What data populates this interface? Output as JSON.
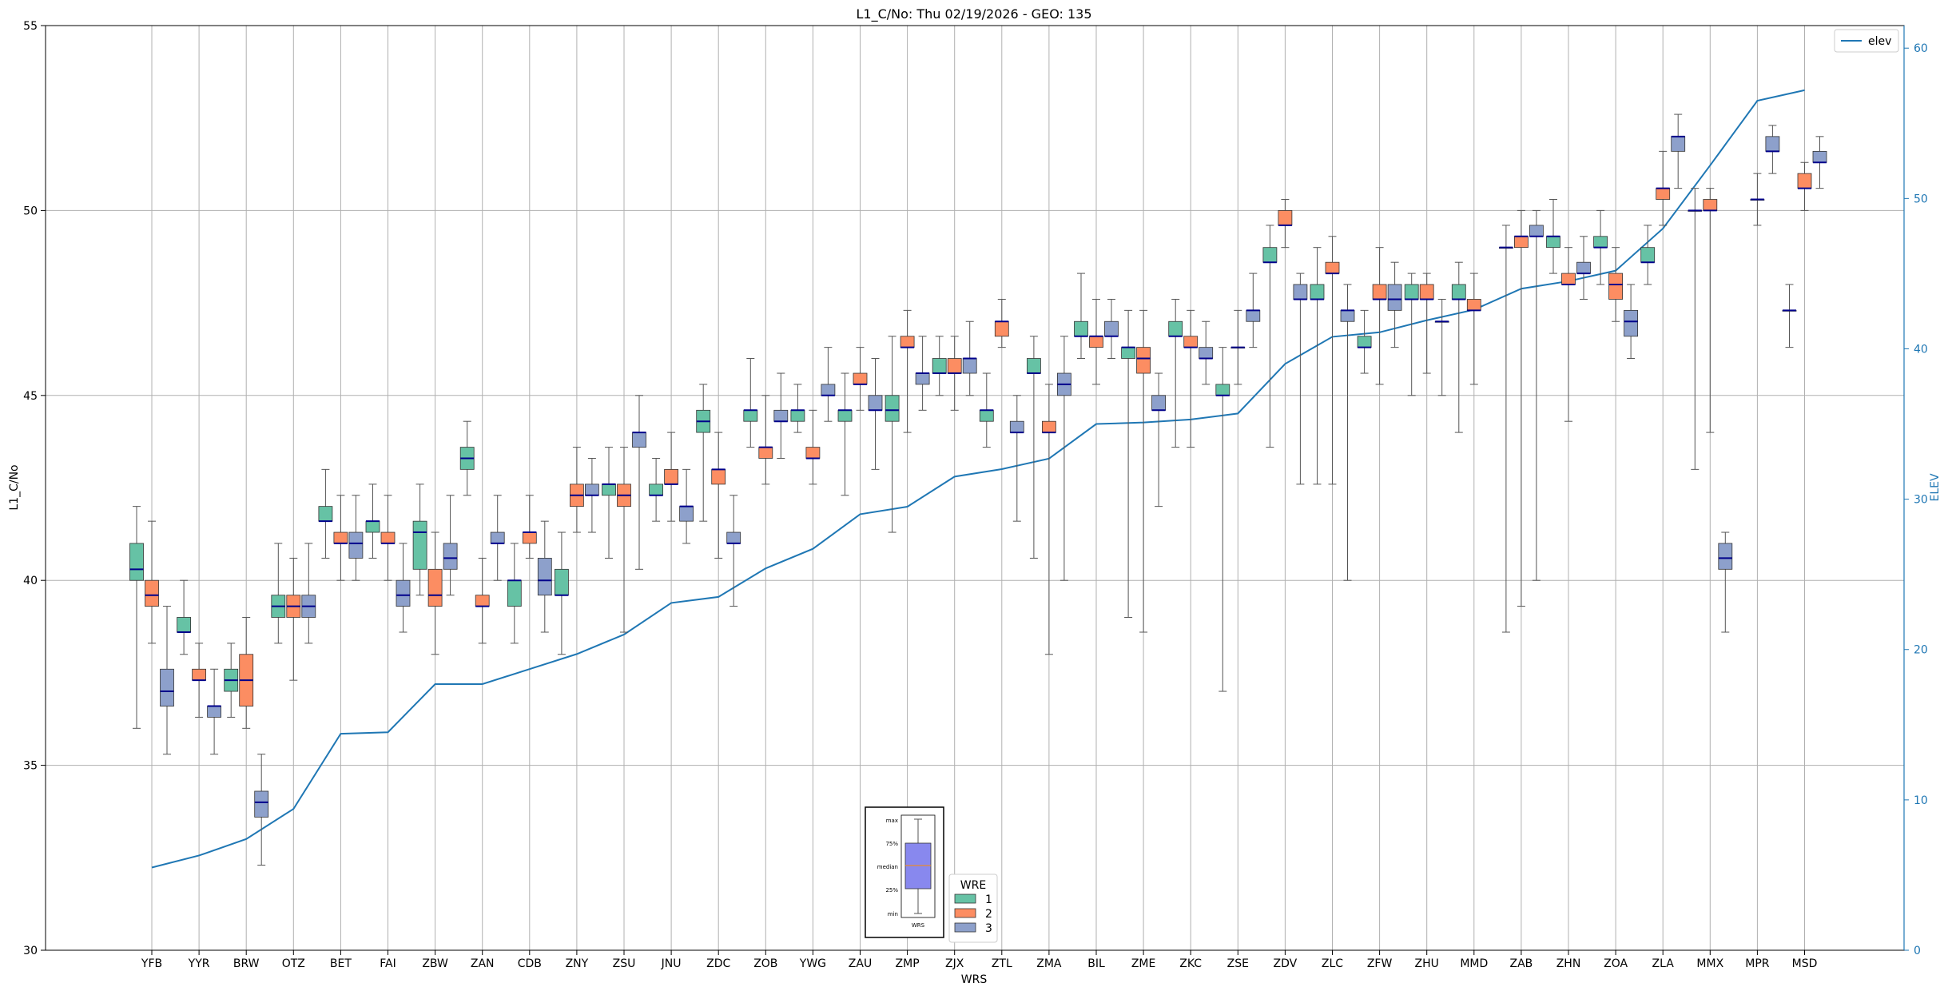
{
  "chart_data": {
    "type": "boxplot",
    "title": "L1_C/No: Thu 02/19/2026 - GEO: 135",
    "xlabel": "WRS",
    "ylabel": "L1_C/No",
    "y2label": "ELEV",
    "ylim": [
      30,
      55
    ],
    "y2lim": [
      0,
      61.5
    ],
    "yticks": [
      30,
      35,
      40,
      45,
      50,
      55
    ],
    "y2ticks": [
      0,
      10,
      20,
      30,
      40,
      50,
      60
    ],
    "categories": [
      "YFB",
      "YYR",
      "BRW",
      "OTZ",
      "BET",
      "FAI",
      "ZBW",
      "ZAN",
      "CDB",
      "ZNY",
      "ZSU",
      "JNU",
      "ZDC",
      "ZOB",
      "YWG",
      "ZAU",
      "ZMP",
      "ZJX",
      "ZTL",
      "ZMA",
      "BIL",
      "ZME",
      "ZKC",
      "ZSE",
      "ZDV",
      "ZLC",
      "ZFW",
      "ZHU",
      "MMD",
      "ZAB",
      "ZHN",
      "ZOA",
      "ZLA",
      "MMX",
      "MPR",
      "MSD"
    ],
    "groups": [
      {
        "name": "1",
        "color": "#66c2a5"
      },
      {
        "name": "2",
        "color": "#fc8d62"
      },
      {
        "name": "3",
        "color": "#8da0cb"
      }
    ],
    "legend_title": "WRE",
    "elev_series": {
      "name": "elev",
      "color": "#1f77b4",
      "values": [
        5.5,
        6.3,
        7.4,
        9.4,
        14.4,
        14.5,
        17.7,
        17.7,
        18.7,
        19.7,
        21.0,
        23.1,
        23.5,
        25.4,
        26.7,
        29.0,
        29.5,
        31.5,
        32.0,
        32.7,
        35.0,
        35.1,
        35.3,
        35.7,
        39.0,
        40.8,
        41.1,
        41.9,
        42.6,
        44.0,
        44.5,
        45.2,
        48.0,
        52.2,
        56.5,
        57.2
      ]
    },
    "boxes": [
      {
        "station": "YFB",
        "wre": 1,
        "min": 36.0,
        "q1": 40.0,
        "median": 40.3,
        "q3": 41.0,
        "max": 42.0
      },
      {
        "station": "YFB",
        "wre": 2,
        "min": 38.3,
        "q1": 39.3,
        "median": 39.6,
        "q3": 40.0,
        "max": 41.6
      },
      {
        "station": "YFB",
        "wre": 3,
        "min": 35.3,
        "q1": 36.6,
        "median": 37.0,
        "q3": 37.6,
        "max": 39.3
      },
      {
        "station": "YYR",
        "wre": 1,
        "min": 38.0,
        "q1": 38.6,
        "median": 38.6,
        "q3": 39.0,
        "max": 40.0
      },
      {
        "station": "YYR",
        "wre": 2,
        "min": 36.3,
        "q1": 37.3,
        "median": 37.3,
        "q3": 37.6,
        "max": 38.3
      },
      {
        "station": "YYR",
        "wre": 3,
        "min": 35.3,
        "q1": 36.3,
        "median": 36.6,
        "q3": 36.6,
        "max": 37.6
      },
      {
        "station": "BRW",
        "wre": 1,
        "min": 36.3,
        "q1": 37.0,
        "median": 37.3,
        "q3": 37.6,
        "max": 38.3
      },
      {
        "station": "BRW",
        "wre": 2,
        "min": 36.0,
        "q1": 36.6,
        "median": 37.3,
        "q3": 38.0,
        "max": 39.0
      },
      {
        "station": "BRW",
        "wre": 3,
        "min": 32.3,
        "q1": 33.6,
        "median": 34.0,
        "q3": 34.3,
        "max": 35.3
      },
      {
        "station": "OTZ",
        "wre": 1,
        "min": 38.3,
        "q1": 39.0,
        "median": 39.3,
        "q3": 39.6,
        "max": 41.0
      },
      {
        "station": "OTZ",
        "wre": 2,
        "min": 37.3,
        "q1": 39.0,
        "median": 39.3,
        "q3": 39.6,
        "max": 40.6
      },
      {
        "station": "OTZ",
        "wre": 3,
        "min": 38.3,
        "q1": 39.0,
        "median": 39.3,
        "q3": 39.6,
        "max": 41.0
      },
      {
        "station": "BET",
        "wre": 1,
        "min": 40.6,
        "q1": 41.6,
        "median": 41.6,
        "q3": 42.0,
        "max": 43.0
      },
      {
        "station": "BET",
        "wre": 2,
        "min": 40.0,
        "q1": 41.0,
        "median": 41.0,
        "q3": 41.3,
        "max": 42.3
      },
      {
        "station": "BET",
        "wre": 3,
        "min": 40.0,
        "q1": 40.6,
        "median": 41.0,
        "q3": 41.3,
        "max": 42.3
      },
      {
        "station": "FAI",
        "wre": 1,
        "min": 40.6,
        "q1": 41.3,
        "median": 41.6,
        "q3": 41.6,
        "max": 42.6
      },
      {
        "station": "FAI",
        "wre": 2,
        "min": 40.0,
        "q1": 41.0,
        "median": 41.0,
        "q3": 41.3,
        "max": 42.3
      },
      {
        "station": "FAI",
        "wre": 3,
        "min": 38.6,
        "q1": 39.3,
        "median": 39.6,
        "q3": 40.0,
        "max": 41.0
      },
      {
        "station": "ZBW",
        "wre": 1,
        "min": 39.6,
        "q1": 40.3,
        "median": 41.3,
        "q3": 41.6,
        "max": 42.6
      },
      {
        "station": "ZBW",
        "wre": 2,
        "min": 38.0,
        "q1": 39.3,
        "median": 39.6,
        "q3": 40.3,
        "max": 41.3
      },
      {
        "station": "ZBW",
        "wre": 3,
        "min": 39.6,
        "q1": 40.3,
        "median": 40.6,
        "q3": 41.0,
        "max": 42.3
      },
      {
        "station": "ZAN",
        "wre": 1,
        "min": 42.3,
        "q1": 43.0,
        "median": 43.3,
        "q3": 43.6,
        "max": 44.3
      },
      {
        "station": "ZAN",
        "wre": 2,
        "min": 38.3,
        "q1": 39.3,
        "median": 39.3,
        "q3": 39.6,
        "max": 40.6
      },
      {
        "station": "ZAN",
        "wre": 3,
        "min": 40.0,
        "q1": 41.0,
        "median": 41.0,
        "q3": 41.3,
        "max": 42.3
      },
      {
        "station": "CDB",
        "wre": 1,
        "min": 38.3,
        "q1": 39.3,
        "median": 40.0,
        "q3": 40.0,
        "max": 41.0
      },
      {
        "station": "CDB",
        "wre": 2,
        "min": 40.6,
        "q1": 41.0,
        "median": 41.3,
        "q3": 41.3,
        "max": 42.3
      },
      {
        "station": "CDB",
        "wre": 3,
        "min": 38.6,
        "q1": 39.6,
        "median": 40.0,
        "q3": 40.6,
        "max": 41.6
      },
      {
        "station": "ZNY",
        "wre": 1,
        "min": 38.0,
        "q1": 39.6,
        "median": 39.6,
        "q3": 40.3,
        "max": 41.3
      },
      {
        "station": "ZNY",
        "wre": 2,
        "min": 41.3,
        "q1": 42.0,
        "median": 42.3,
        "q3": 42.6,
        "max": 43.6
      },
      {
        "station": "ZNY",
        "wre": 3,
        "min": 41.3,
        "q1": 42.3,
        "median": 42.3,
        "q3": 42.6,
        "max": 43.3
      },
      {
        "station": "ZSU",
        "wre": 1,
        "min": 40.6,
        "q1": 42.3,
        "median": 42.6,
        "q3": 42.6,
        "max": 43.6
      },
      {
        "station": "ZSU",
        "wre": 2,
        "min": 38.6,
        "q1": 42.0,
        "median": 42.3,
        "q3": 42.6,
        "max": 43.6
      },
      {
        "station": "ZSU",
        "wre": 3,
        "min": 40.3,
        "q1": 43.6,
        "median": 44.0,
        "q3": 44.0,
        "max": 45.0
      },
      {
        "station": "JNU",
        "wre": 1,
        "min": 41.6,
        "q1": 42.3,
        "median": 42.3,
        "q3": 42.6,
        "max": 43.3
      },
      {
        "station": "JNU",
        "wre": 2,
        "min": 41.6,
        "q1": 42.6,
        "median": 42.6,
        "q3": 43.0,
        "max": 44.0
      },
      {
        "station": "JNU",
        "wre": 3,
        "min": 41.0,
        "q1": 41.6,
        "median": 42.0,
        "q3": 42.0,
        "max": 43.0
      },
      {
        "station": "ZDC",
        "wre": 1,
        "min": 41.6,
        "q1": 44.0,
        "median": 44.3,
        "q3": 44.6,
        "max": 45.3
      },
      {
        "station": "ZDC",
        "wre": 2,
        "min": 40.6,
        "q1": 42.6,
        "median": 43.0,
        "q3": 43.0,
        "max": 44.0
      },
      {
        "station": "ZDC",
        "wre": 3,
        "min": 39.3,
        "q1": 41.0,
        "median": 41.0,
        "q3": 41.3,
        "max": 42.3
      },
      {
        "station": "ZOB",
        "wre": 1,
        "min": 43.6,
        "q1": 44.3,
        "median": 44.6,
        "q3": 44.6,
        "max": 46.0
      },
      {
        "station": "ZOB",
        "wre": 2,
        "min": 42.6,
        "q1": 43.3,
        "median": 43.6,
        "q3": 43.6,
        "max": 45.0
      },
      {
        "station": "ZOB",
        "wre": 3,
        "min": 43.3,
        "q1": 44.3,
        "median": 44.3,
        "q3": 44.6,
        "max": 45.6
      },
      {
        "station": "YWG",
        "wre": 1,
        "min": 44.0,
        "q1": 44.3,
        "median": 44.6,
        "q3": 44.6,
        "max": 45.3
      },
      {
        "station": "YWG",
        "wre": 2,
        "min": 42.6,
        "q1": 43.3,
        "median": 43.3,
        "q3": 43.6,
        "max": 44.6
      },
      {
        "station": "YWG",
        "wre": 3,
        "min": 44.3,
        "q1": 45.0,
        "median": 45.0,
        "q3": 45.3,
        "max": 46.3
      },
      {
        "station": "ZAU",
        "wre": 1,
        "min": 42.3,
        "q1": 44.3,
        "median": 44.6,
        "q3": 44.6,
        "max": 45.6
      },
      {
        "station": "ZAU",
        "wre": 2,
        "min": 44.6,
        "q1": 45.3,
        "median": 45.3,
        "q3": 45.6,
        "max": 46.3
      },
      {
        "station": "ZAU",
        "wre": 3,
        "min": 43.0,
        "q1": 44.6,
        "median": 44.6,
        "q3": 45.0,
        "max": 46.0
      },
      {
        "station": "ZMP",
        "wre": 1,
        "min": 41.3,
        "q1": 44.3,
        "median": 44.6,
        "q3": 45.0,
        "max": 46.6
      },
      {
        "station": "ZMP",
        "wre": 2,
        "min": 44.0,
        "q1": 46.3,
        "median": 46.3,
        "q3": 46.6,
        "max": 47.3
      },
      {
        "station": "ZMP",
        "wre": 3,
        "min": 44.6,
        "q1": 45.3,
        "median": 45.6,
        "q3": 45.6,
        "max": 46.6
      },
      {
        "station": "ZJX",
        "wre": 1,
        "min": 45.0,
        "q1": 45.6,
        "median": 45.6,
        "q3": 46.0,
        "max": 46.6
      },
      {
        "station": "ZJX",
        "wre": 2,
        "min": 44.6,
        "q1": 45.6,
        "median": 45.6,
        "q3": 46.0,
        "max": 46.6
      },
      {
        "station": "ZJX",
        "wre": 3,
        "min": 45.0,
        "q1": 45.6,
        "median": 46.0,
        "q3": 46.0,
        "max": 47.0
      },
      {
        "station": "ZTL",
        "wre": 1,
        "min": 43.6,
        "q1": 44.3,
        "median": 44.6,
        "q3": 44.6,
        "max": 45.6
      },
      {
        "station": "ZTL",
        "wre": 2,
        "min": 46.3,
        "q1": 46.6,
        "median": 47.0,
        "q3": 47.0,
        "max": 47.6
      },
      {
        "station": "ZTL",
        "wre": 3,
        "min": 41.6,
        "q1": 44.0,
        "median": 44.0,
        "q3": 44.3,
        "max": 45.0
      },
      {
        "station": "ZMA",
        "wre": 1,
        "min": 40.6,
        "q1": 45.6,
        "median": 45.6,
        "q3": 46.0,
        "max": 46.6
      },
      {
        "station": "ZMA",
        "wre": 2,
        "min": 38.0,
        "q1": 44.0,
        "median": 44.0,
        "q3": 44.3,
        "max": 45.3
      },
      {
        "station": "ZMA",
        "wre": 3,
        "min": 40.0,
        "q1": 45.0,
        "median": 45.3,
        "q3": 45.6,
        "max": 46.6
      },
      {
        "station": "BIL",
        "wre": 1,
        "min": 46.0,
        "q1": 46.6,
        "median": 46.6,
        "q3": 47.0,
        "max": 48.3
      },
      {
        "station": "BIL",
        "wre": 2,
        "min": 45.3,
        "q1": 46.3,
        "median": 46.6,
        "q3": 46.6,
        "max": 47.6
      },
      {
        "station": "BIL",
        "wre": 3,
        "min": 46.0,
        "q1": 46.6,
        "median": 46.6,
        "q3": 47.0,
        "max": 47.6
      },
      {
        "station": "ZME",
        "wre": 1,
        "min": 39.0,
        "q1": 46.0,
        "median": 46.3,
        "q3": 46.3,
        "max": 47.3
      },
      {
        "station": "ZME",
        "wre": 2,
        "min": 38.6,
        "q1": 45.6,
        "median": 46.0,
        "q3": 46.3,
        "max": 47.3
      },
      {
        "station": "ZME",
        "wre": 3,
        "min": 42.0,
        "q1": 44.6,
        "median": 44.6,
        "q3": 45.0,
        "max": 45.6
      },
      {
        "station": "ZKC",
        "wre": 1,
        "min": 43.6,
        "q1": 46.6,
        "median": 46.6,
        "q3": 47.0,
        "max": 47.6
      },
      {
        "station": "ZKC",
        "wre": 2,
        "min": 43.6,
        "q1": 46.3,
        "median": 46.3,
        "q3": 46.6,
        "max": 47.3
      },
      {
        "station": "ZKC",
        "wre": 3,
        "min": 45.3,
        "q1": 46.0,
        "median": 46.0,
        "q3": 46.3,
        "max": 47.0
      },
      {
        "station": "ZSE",
        "wre": 1,
        "min": 37.0,
        "q1": 45.0,
        "median": 45.0,
        "q3": 45.3,
        "max": 46.3
      },
      {
        "station": "ZSE",
        "wre": 2,
        "min": 45.3,
        "q1": 46.3,
        "median": 46.3,
        "q3": 46.3,
        "max": 47.3
      },
      {
        "station": "ZSE",
        "wre": 3,
        "min": 46.3,
        "q1": 47.0,
        "median": 47.3,
        "q3": 47.3,
        "max": 48.3
      },
      {
        "station": "ZDV",
        "wre": 1,
        "min": 43.6,
        "q1": 48.6,
        "median": 48.6,
        "q3": 49.0,
        "max": 49.6
      },
      {
        "station": "ZDV",
        "wre": 2,
        "min": 49.0,
        "q1": 49.6,
        "median": 49.6,
        "q3": 50.0,
        "max": 50.3
      },
      {
        "station": "ZDV",
        "wre": 3,
        "min": 42.6,
        "q1": 47.6,
        "median": 47.6,
        "q3": 48.0,
        "max": 48.3
      },
      {
        "station": "ZLC",
        "wre": 1,
        "min": 42.6,
        "q1": 47.6,
        "median": 47.6,
        "q3": 48.0,
        "max": 49.0
      },
      {
        "station": "ZLC",
        "wre": 2,
        "min": 42.6,
        "q1": 48.3,
        "median": 48.3,
        "q3": 48.6,
        "max": 49.3
      },
      {
        "station": "ZLC",
        "wre": 3,
        "min": 40.0,
        "q1": 47.0,
        "median": 47.3,
        "q3": 47.3,
        "max": 48.0
      },
      {
        "station": "ZFW",
        "wre": 1,
        "min": 45.6,
        "q1": 46.3,
        "median": 46.3,
        "q3": 46.6,
        "max": 47.3
      },
      {
        "station": "ZFW",
        "wre": 2,
        "min": 45.3,
        "q1": 47.6,
        "median": 47.6,
        "q3": 48.0,
        "max": 49.0
      },
      {
        "station": "ZFW",
        "wre": 3,
        "min": 46.3,
        "q1": 47.3,
        "median": 47.6,
        "q3": 48.0,
        "max": 48.6
      },
      {
        "station": "ZHU",
        "wre": 1,
        "min": 45.0,
        "q1": 47.6,
        "median": 47.6,
        "q3": 48.0,
        "max": 48.3
      },
      {
        "station": "ZHU",
        "wre": 2,
        "min": 45.6,
        "q1": 47.6,
        "median": 47.6,
        "q3": 48.0,
        "max": 48.3
      },
      {
        "station": "ZHU",
        "wre": 3,
        "min": 45.0,
        "q1": 47.0,
        "median": 47.0,
        "q3": 47.0,
        "max": 47.6
      },
      {
        "station": "MMD",
        "wre": 1,
        "min": 44.0,
        "q1": 47.6,
        "median": 47.6,
        "q3": 48.0,
        "max": 48.6
      },
      {
        "station": "MMD",
        "wre": 2,
        "min": 45.3,
        "q1": 47.3,
        "median": 47.3,
        "q3": 47.6,
        "max": 48.3
      },
      {
        "station": "ZAB",
        "wre": 1,
        "min": 38.6,
        "q1": 49.0,
        "median": 49.0,
        "q3": 49.0,
        "max": 49.6
      },
      {
        "station": "ZAB",
        "wre": 2,
        "min": 39.3,
        "q1": 49.0,
        "median": 49.3,
        "q3": 49.3,
        "max": 50.0
      },
      {
        "station": "ZAB",
        "wre": 3,
        "min": 40.0,
        "q1": 49.3,
        "median": 49.3,
        "q3": 49.6,
        "max": 50.0
      },
      {
        "station": "ZHN",
        "wre": 1,
        "min": 48.3,
        "q1": 49.0,
        "median": 49.3,
        "q3": 49.3,
        "max": 50.3
      },
      {
        "station": "ZHN",
        "wre": 2,
        "min": 44.3,
        "q1": 48.0,
        "median": 48.0,
        "q3": 48.3,
        "max": 49.0
      },
      {
        "station": "ZHN",
        "wre": 3,
        "min": 47.6,
        "q1": 48.3,
        "median": 48.3,
        "q3": 48.6,
        "max": 49.3
      },
      {
        "station": "ZOA",
        "wre": 1,
        "min": 48.0,
        "q1": 49.0,
        "median": 49.0,
        "q3": 49.3,
        "max": 50.0
      },
      {
        "station": "ZOA",
        "wre": 2,
        "min": 47.0,
        "q1": 47.6,
        "median": 48.0,
        "q3": 48.3,
        "max": 49.0
      },
      {
        "station": "ZOA",
        "wre": 3,
        "min": 46.0,
        "q1": 46.6,
        "median": 47.0,
        "q3": 47.3,
        "max": 48.0
      },
      {
        "station": "ZLA",
        "wre": 1,
        "min": 48.0,
        "q1": 48.6,
        "median": 48.6,
        "q3": 49.0,
        "max": 49.6
      },
      {
        "station": "ZLA",
        "wre": 2,
        "min": 49.6,
        "q1": 50.3,
        "median": 50.6,
        "q3": 50.6,
        "max": 51.6
      },
      {
        "station": "ZLA",
        "wre": 3,
        "min": 50.6,
        "q1": 51.6,
        "median": 52.0,
        "q3": 52.0,
        "max": 52.6
      },
      {
        "station": "MMX",
        "wre": 1,
        "min": 43.0,
        "q1": 50.0,
        "median": 50.0,
        "q3": 50.0,
        "max": 50.6
      },
      {
        "station": "MMX",
        "wre": 2,
        "min": 44.0,
        "q1": 50.0,
        "median": 50.0,
        "q3": 50.3,
        "max": 50.6
      },
      {
        "station": "MMX",
        "wre": 3,
        "min": 38.6,
        "q1": 40.3,
        "median": 40.6,
        "q3": 41.0,
        "max": 41.3
      },
      {
        "station": "MPR",
        "wre": 2,
        "min": 49.6,
        "q1": 50.3,
        "median": 50.3,
        "q3": 50.3,
        "max": 51.0
      },
      {
        "station": "MPR",
        "wre": 3,
        "min": 51.0,
        "q1": 51.6,
        "median": 51.6,
        "q3": 52.0,
        "max": 52.3
      },
      {
        "station": "MSD",
        "wre": 1,
        "min": 46.3,
        "q1": 47.3,
        "median": 47.3,
        "q3": 47.3,
        "max": 48.0
      },
      {
        "station": "MSD",
        "wre": 2,
        "min": 50.0,
        "q1": 50.6,
        "median": 50.6,
        "q3": 51.0,
        "max": 51.3
      },
      {
        "station": "MSD",
        "wre": 3,
        "min": 50.6,
        "q1": 51.3,
        "median": 51.3,
        "q3": 51.6,
        "max": 52.0
      }
    ],
    "key_labels": [
      "max",
      "75%",
      "median",
      "25%",
      "min",
      "WRS"
    ]
  }
}
